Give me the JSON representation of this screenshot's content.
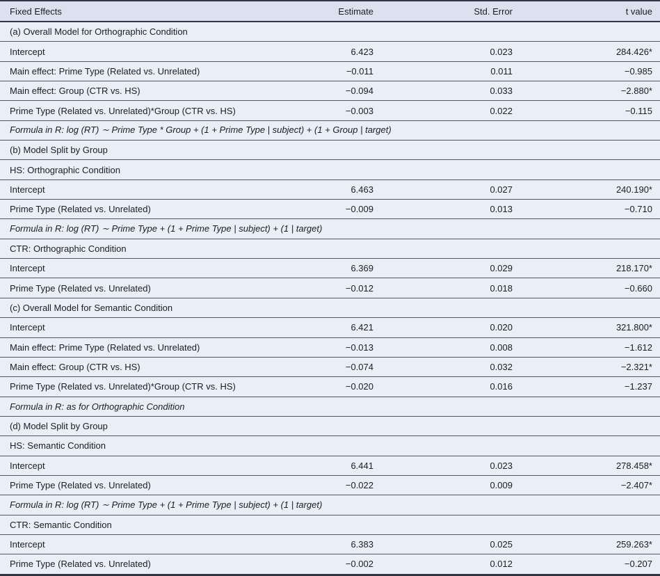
{
  "colors": {
    "header_bg": "#dce1ef",
    "row_bg": "#eaeef7",
    "rule_dark": "#2e3442",
    "rule_light": "#4d5465",
    "text": "#1a1d25"
  },
  "table": {
    "columns": [
      {
        "label": "Fixed Effects",
        "align": "left"
      },
      {
        "label": "Estimate",
        "align": "right"
      },
      {
        "label": "Std. Error",
        "align": "right"
      },
      {
        "label": "t value",
        "align": "right"
      }
    ],
    "rows": [
      {
        "type": "section",
        "label": "(a) Overall Model for Orthographic Condition"
      },
      {
        "type": "data",
        "label": "Intercept",
        "estimate": "6.423",
        "std_error": "0.023",
        "t_value": "284.426*"
      },
      {
        "type": "data",
        "label": "Main effect: Prime Type (Related vs. Unrelated)",
        "estimate": "−0.011",
        "std_error": "0.011",
        "t_value": "−0.985"
      },
      {
        "type": "data",
        "label": "Main effect: Group (CTR vs. HS)",
        "estimate": "−0.094",
        "std_error": "0.033",
        "t_value": "−2.880*"
      },
      {
        "type": "data",
        "label": "Prime Type (Related vs. Unrelated)*Group (CTR vs. HS)",
        "estimate": "−0.003",
        "std_error": "0.022",
        "t_value": "−0.115"
      },
      {
        "type": "formula",
        "label": "Formula in R: log (RT) ∼ Prime Type * Group + (1 + Prime Type | subject) + (1 + Group | target)"
      },
      {
        "type": "section",
        "label": "(b) Model Split by Group"
      },
      {
        "type": "section",
        "label": "HS: Orthographic Condition"
      },
      {
        "type": "data",
        "label": "Intercept",
        "estimate": "6.463",
        "std_error": "0.027",
        "t_value": "240.190*"
      },
      {
        "type": "data",
        "label": "Prime Type (Related vs. Unrelated)",
        "estimate": "−0.009",
        "std_error": "0.013",
        "t_value": "−0.710"
      },
      {
        "type": "formula",
        "label": "Formula in R: log (RT) ∼ Prime Type + (1 + Prime Type | subject) + (1 | target)"
      },
      {
        "type": "section",
        "label": "CTR: Orthographic Condition"
      },
      {
        "type": "data",
        "label": "Intercept",
        "estimate": "6.369",
        "std_error": "0.029",
        "t_value": "218.170*"
      },
      {
        "type": "data",
        "label": "Prime Type (Related vs. Unrelated)",
        "estimate": "−0.012",
        "std_error": "0.018",
        "t_value": "−0.660"
      },
      {
        "type": "section",
        "label": "(c) Overall Model for Semantic Condition"
      },
      {
        "type": "data",
        "label": "Intercept",
        "estimate": "6.421",
        "std_error": "0.020",
        "t_value": "321.800*"
      },
      {
        "type": "data",
        "label": "Main effect: Prime Type (Related vs. Unrelated)",
        "estimate": "−0.013",
        "std_error": "0.008",
        "t_value": "−1.612"
      },
      {
        "type": "data",
        "label": "Main effect: Group (CTR vs. HS)",
        "estimate": "−0.074",
        "std_error": "0.032",
        "t_value": "−2.321*"
      },
      {
        "type": "data",
        "label": "Prime Type (Related vs. Unrelated)*Group (CTR vs. HS)",
        "estimate": "−0.020",
        "std_error": "0.016",
        "t_value": "−1.237"
      },
      {
        "type": "formula",
        "label": "Formula in R: as for Orthographic Condition"
      },
      {
        "type": "section",
        "label": "(d) Model Split by Group"
      },
      {
        "type": "section",
        "label": "HS: Semantic Condition"
      },
      {
        "type": "data",
        "label": "Intercept",
        "estimate": "6.441",
        "std_error": "0.023",
        "t_value": "278.458*"
      },
      {
        "type": "data",
        "label": "Prime Type (Related vs. Unrelated)",
        "estimate": "−0.022",
        "std_error": "0.009",
        "t_value": "−2.407*"
      },
      {
        "type": "formula",
        "label": "Formula in R: log (RT) ∼ Prime Type + (1 + Prime Type | subject) + (1 | target)"
      },
      {
        "type": "section",
        "label": "CTR: Semantic Condition"
      },
      {
        "type": "data",
        "label": "Intercept",
        "estimate": "6.383",
        "std_error": "0.025",
        "t_value": "259.263*"
      },
      {
        "type": "data",
        "label": "Prime Type (Related vs. Unrelated)",
        "estimate": "−0.002",
        "std_error": "0.012",
        "t_value": "−0.207"
      }
    ]
  }
}
